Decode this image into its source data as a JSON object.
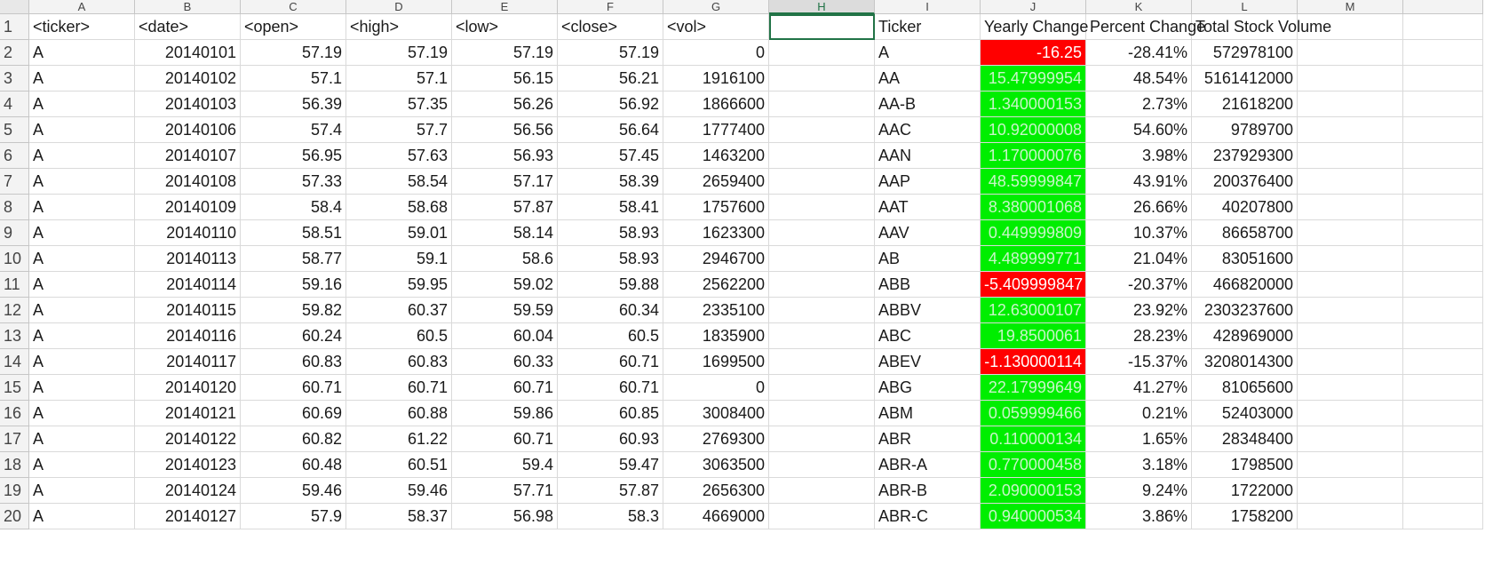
{
  "colors": {
    "negative_fill": "#ff0000",
    "positive_fill": "#00ee00",
    "selection": "#217346"
  },
  "sheet": {
    "columns": [
      "A",
      "B",
      "C",
      "D",
      "E",
      "F",
      "G",
      "H",
      "I",
      "J",
      "K",
      "L",
      "M"
    ],
    "active_column": "H",
    "rows": [
      {
        "num": "1",
        "cells": [
          "<ticker>",
          "<date>",
          "<open>",
          "<high>",
          "<low>",
          "<close>",
          "<vol>",
          "",
          "Ticker",
          "Yearly Change",
          "Percent Change",
          "Total Stock Volume",
          ""
        ]
      },
      {
        "num": "2",
        "cells": [
          "A",
          "20140101",
          "57.19",
          "57.19",
          "57.19",
          "57.19",
          "0",
          "",
          "A",
          "-16.25",
          "-28.41%",
          "572978100",
          ""
        ]
      },
      {
        "num": "3",
        "cells": [
          "A",
          "20140102",
          "57.1",
          "57.1",
          "56.15",
          "56.21",
          "1916100",
          "",
          "AA",
          "15.47999954",
          "48.54%",
          "5161412000",
          ""
        ]
      },
      {
        "num": "4",
        "cells": [
          "A",
          "20140103",
          "56.39",
          "57.35",
          "56.26",
          "56.92",
          "1866600",
          "",
          "AA-B",
          "1.340000153",
          "2.73%",
          "21618200",
          ""
        ]
      },
      {
        "num": "5",
        "cells": [
          "A",
          "20140106",
          "57.4",
          "57.7",
          "56.56",
          "56.64",
          "1777400",
          "",
          "AAC",
          "10.92000008",
          "54.60%",
          "9789700",
          ""
        ]
      },
      {
        "num": "6",
        "cells": [
          "A",
          "20140107",
          "56.95",
          "57.63",
          "56.93",
          "57.45",
          "1463200",
          "",
          "AAN",
          "1.170000076",
          "3.98%",
          "237929300",
          ""
        ]
      },
      {
        "num": "7",
        "cells": [
          "A",
          "20140108",
          "57.33",
          "58.54",
          "57.17",
          "58.39",
          "2659400",
          "",
          "AAP",
          "48.59999847",
          "43.91%",
          "200376400",
          ""
        ]
      },
      {
        "num": "8",
        "cells": [
          "A",
          "20140109",
          "58.4",
          "58.68",
          "57.87",
          "58.41",
          "1757600",
          "",
          "AAT",
          "8.380001068",
          "26.66%",
          "40207800",
          ""
        ]
      },
      {
        "num": "9",
        "cells": [
          "A",
          "20140110",
          "58.51",
          "59.01",
          "58.14",
          "58.93",
          "1623300",
          "",
          "AAV",
          "0.449999809",
          "10.37%",
          "86658700",
          ""
        ]
      },
      {
        "num": "10",
        "cells": [
          "A",
          "20140113",
          "58.77",
          "59.1",
          "58.6",
          "58.93",
          "2946700",
          "",
          "AB",
          "4.489999771",
          "21.04%",
          "83051600",
          ""
        ]
      },
      {
        "num": "11",
        "cells": [
          "A",
          "20140114",
          "59.16",
          "59.95",
          "59.02",
          "59.88",
          "2562200",
          "",
          "ABB",
          "-5.409999847",
          "-20.37%",
          "466820000",
          ""
        ]
      },
      {
        "num": "12",
        "cells": [
          "A",
          "20140115",
          "59.82",
          "60.37",
          "59.59",
          "60.34",
          "2335100",
          "",
          "ABBV",
          "12.63000107",
          "23.92%",
          "2303237600",
          ""
        ]
      },
      {
        "num": "13",
        "cells": [
          "A",
          "20140116",
          "60.24",
          "60.5",
          "60.04",
          "60.5",
          "1835900",
          "",
          "ABC",
          "19.8500061",
          "28.23%",
          "428969000",
          ""
        ]
      },
      {
        "num": "14",
        "cells": [
          "A",
          "20140117",
          "60.83",
          "60.83",
          "60.33",
          "60.71",
          "1699500",
          "",
          "ABEV",
          "-1.130000114",
          "-15.37%",
          "3208014300",
          ""
        ]
      },
      {
        "num": "15",
        "cells": [
          "A",
          "20140120",
          "60.71",
          "60.71",
          "60.71",
          "60.71",
          "0",
          "",
          "ABG",
          "22.17999649",
          "41.27%",
          "81065600",
          ""
        ]
      },
      {
        "num": "16",
        "cells": [
          "A",
          "20140121",
          "60.69",
          "60.88",
          "59.86",
          "60.85",
          "3008400",
          "",
          "ABM",
          "0.059999466",
          "0.21%",
          "52403000",
          ""
        ]
      },
      {
        "num": "17",
        "cells": [
          "A",
          "20140122",
          "60.82",
          "61.22",
          "60.71",
          "60.93",
          "2769300",
          "",
          "ABR",
          "0.110000134",
          "1.65%",
          "28348400",
          ""
        ]
      },
      {
        "num": "18",
        "cells": [
          "A",
          "20140123",
          "60.48",
          "60.51",
          "59.4",
          "59.47",
          "3063500",
          "",
          "ABR-A",
          "0.770000458",
          "3.18%",
          "1798500",
          ""
        ]
      },
      {
        "num": "19",
        "cells": [
          "A",
          "20140124",
          "59.46",
          "59.46",
          "57.71",
          "57.87",
          "2656300",
          "",
          "ABR-B",
          "2.090000153",
          "9.24%",
          "1722000",
          ""
        ]
      },
      {
        "num": "20",
        "cells": [
          "A",
          "20140127",
          "57.9",
          "58.37",
          "56.98",
          "58.3",
          "4669000",
          "",
          "ABR-C",
          "0.940000534",
          "3.86%",
          "1758200",
          ""
        ]
      }
    ]
  }
}
